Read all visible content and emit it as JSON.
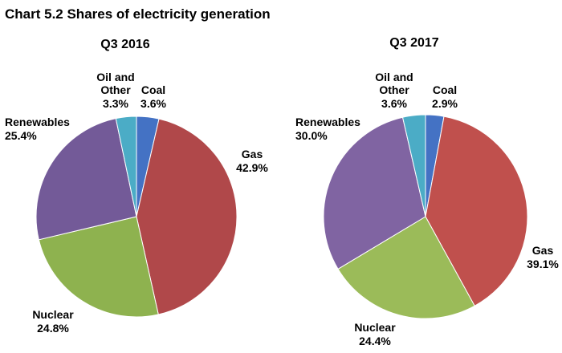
{
  "figure": {
    "title": "Chart 5.2 Shares of electricity generation"
  },
  "chart_data": [
    {
      "type": "pie",
      "title": "Q3 2016",
      "slices": [
        {
          "name": "Coal",
          "value": 3.6,
          "value_label": "3.6%",
          "color": "#4472c4"
        },
        {
          "name": "Gas",
          "value": 42.9,
          "value_label": "42.9%",
          "color": "#b0484a"
        },
        {
          "name": "Nuclear",
          "value": 24.8,
          "value_label": "24.8%",
          "color": "#8eb24f"
        },
        {
          "name": "Renewables",
          "value": 25.4,
          "value_label": "25.4%",
          "color": "#735a98"
        },
        {
          "name": "Oil and Other",
          "value": 3.3,
          "value_label": "3.3%",
          "color": "#4bacc6"
        }
      ]
    },
    {
      "type": "pie",
      "title": "Q3 2017",
      "slices": [
        {
          "name": "Coal",
          "value": 2.9,
          "value_label": "2.9%",
          "color": "#4472c4"
        },
        {
          "name": "Gas",
          "value": 39.1,
          "value_label": "39.1%",
          "color": "#c0504d"
        },
        {
          "name": "Nuclear",
          "value": 24.4,
          "value_label": "24.4%",
          "color": "#9bbb59"
        },
        {
          "name": "Renewables",
          "value": 30.0,
          "value_label": "30.0%",
          "color": "#8064a2"
        },
        {
          "name": "Oil and Other",
          "value": 3.6,
          "value_label": "3.6%",
          "color": "#4bacc6"
        }
      ]
    }
  ]
}
